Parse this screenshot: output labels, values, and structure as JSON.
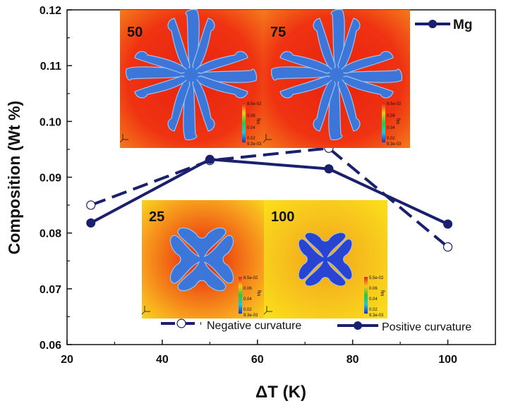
{
  "chart_data": {
    "type": "line",
    "xlabel": "ΔT (K)",
    "ylabel": "Composition (Wt %)",
    "xlim": [
      20,
      110
    ],
    "ylim": [
      0.06,
      0.12
    ],
    "xticks": [
      "20",
      "40",
      "60",
      "80",
      "100"
    ],
    "yticks": [
      "0.06",
      "0.07",
      "0.08",
      "0.09",
      "0.10",
      "0.11",
      "0.12"
    ],
    "grid": false,
    "series": [
      {
        "name": "Negative curvature",
        "x": [
          25,
          50,
          75,
          100
        ],
        "y": [
          0.085,
          0.093,
          0.0952,
          0.0775
        ],
        "line_style": "dashed",
        "marker": "open-circle",
        "color": "#1a1f6e"
      },
      {
        "name": "Positive curvature",
        "x": [
          25,
          50,
          75,
          100
        ],
        "y": [
          0.0818,
          0.0932,
          0.0915,
          0.0816
        ],
        "line_style": "solid",
        "marker": "filled-circle",
        "color": "#1a1f6e"
      }
    ],
    "top_legend": "Mg",
    "insets": [
      {
        "label": "50",
        "background": "red",
        "shape": "large-dendrite",
        "colorbar": {
          "top": "8.5e-02",
          "ticks": [
            "0.06",
            "0.04",
            "0.02"
          ],
          "bottom": "9.3e-03",
          "title": "Mg"
        }
      },
      {
        "label": "75",
        "background": "red",
        "shape": "large-dendrite",
        "colorbar": {
          "top": "8.5e-02",
          "ticks": [
            "0.06",
            "0.04",
            "0.02"
          ],
          "bottom": "9.3e-03",
          "title": "Mg"
        }
      },
      {
        "label": "25",
        "background": "orange",
        "shape": "small-dendrite",
        "colorbar": {
          "top": "8.5e-02",
          "ticks": [
            "0.06",
            "0.04",
            "0.02"
          ],
          "bottom": "9.3e-03",
          "title": "Mg"
        }
      },
      {
        "label": "100",
        "background": "orange",
        "shape": "small-dendrite",
        "colorbar": {
          "top": "5.5e-02",
          "ticks": [
            "0.06",
            "0.04",
            "0.02"
          ],
          "bottom": "9.3e-03",
          "title": "Mg"
        }
      }
    ]
  }
}
